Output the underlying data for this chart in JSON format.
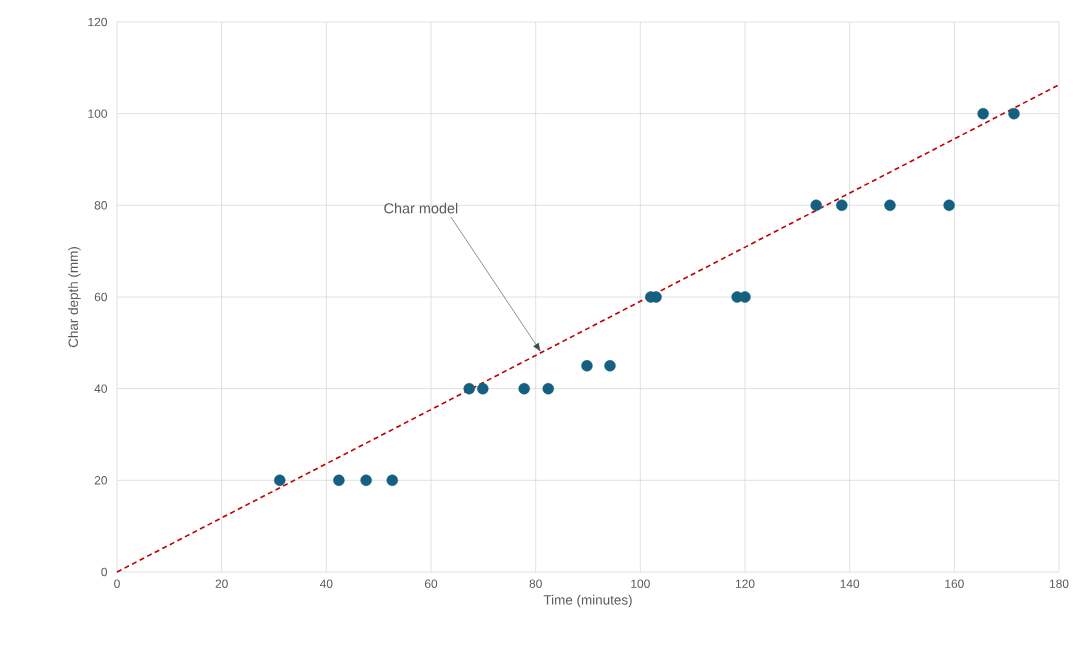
{
  "chart_data": {
    "type": "scatter",
    "xlabel": "Time (minutes)",
    "ylabel": "Char depth (mm)",
    "xlim": [
      0,
      180
    ],
    "ylim": [
      0,
      120
    ],
    "xticks": [
      0,
      20,
      40,
      60,
      80,
      100,
      120,
      140,
      160,
      180
    ],
    "yticks": [
      0,
      20,
      40,
      60,
      80,
      100,
      120
    ],
    "grid": true,
    "marker": "circle",
    "annotations": [
      {
        "text": "Char model",
        "x": 81,
        "y": 48
      }
    ],
    "series": [
      {
        "type": "scatter",
        "color": "#156082",
        "x": [
          31.1,
          42.4,
          47.6,
          52.6,
          67.3,
          69.9,
          77.8,
          82.4,
          89.8,
          94.2,
          102.0,
          103.0,
          118.5,
          120.0,
          133.6,
          138.5,
          147.7,
          159.0,
          165.5,
          171.4
        ],
        "values": [
          20,
          20,
          20,
          20,
          40,
          40,
          40,
          40,
          45,
          45,
          60,
          60,
          60,
          60,
          80,
          80,
          80,
          80,
          100,
          100
        ]
      },
      {
        "type": "line",
        "color": "#c00000",
        "line_style": "dashed",
        "marker": "none",
        "x": [
          0,
          180
        ],
        "values": [
          0,
          106.3
        ]
      }
    ]
  }
}
